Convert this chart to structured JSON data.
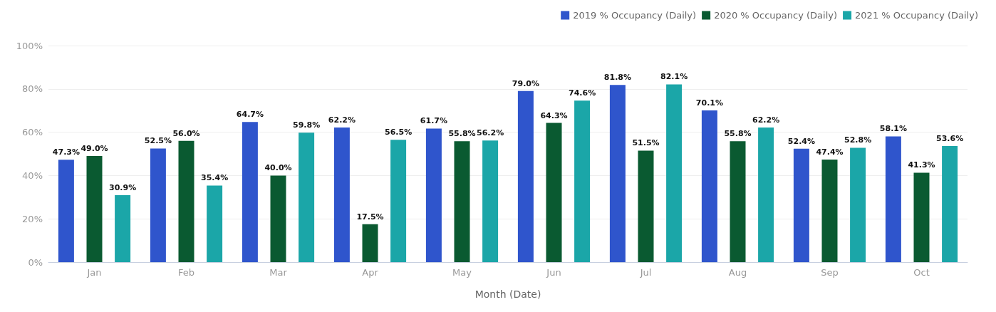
{
  "chart_data": {
    "type": "bar",
    "xlabel": "Month (Date)",
    "categories": [
      "Jan",
      "Feb",
      "Mar",
      "Apr",
      "May",
      "Jun",
      "Jul",
      "Aug",
      "Sep",
      "Oct"
    ],
    "series": [
      {
        "name": "2019 % Occupancy (Daily)",
        "color": "#2f55cc",
        "values": [
          47.3,
          52.5,
          64.7,
          62.2,
          61.7,
          79.0,
          81.8,
          70.1,
          52.4,
          58.1
        ],
        "value_labels": [
          "47.3%",
          "52.5%",
          "64.7%",
          "62.2%",
          "61.7%",
          "79.0%",
          "81.8%",
          "70.1%",
          "52.4%",
          "58.1%"
        ]
      },
      {
        "name": "2020 % Occupancy (Daily)",
        "color": "#0a5a31",
        "values": [
          49.0,
          56.0,
          40.0,
          17.5,
          55.8,
          64.3,
          51.5,
          55.8,
          47.4,
          41.3
        ],
        "value_labels": [
          "49.0%",
          "56.0%",
          "40.0%",
          "17.5%",
          "55.8%",
          "64.3%",
          "51.5%",
          "55.8%",
          "47.4%",
          "41.3%"
        ]
      },
      {
        "name": "2021 % Occupancy (Daily)",
        "color": "#1ba6a8",
        "values": [
          30.9,
          35.4,
          59.8,
          56.5,
          56.2,
          74.6,
          82.1,
          62.2,
          52.8,
          53.6
        ],
        "value_labels": [
          "30.9%",
          "35.4%",
          "59.8%",
          "56.5%",
          "56.2%",
          "74.6%",
          "82.1%",
          "62.2%",
          "52.8%",
          "53.6%"
        ]
      }
    ],
    "ylim": [
      0,
      100
    ],
    "yticks": [
      {
        "value": 0,
        "label": "0%"
      },
      {
        "value": 20,
        "label": "20%"
      },
      {
        "value": 40,
        "label": "40%"
      },
      {
        "value": 60,
        "label": "60%"
      },
      {
        "value": 80,
        "label": "80%"
      },
      {
        "value": 100,
        "label": "100%"
      }
    ],
    "grid": "y",
    "legend": "top right"
  }
}
